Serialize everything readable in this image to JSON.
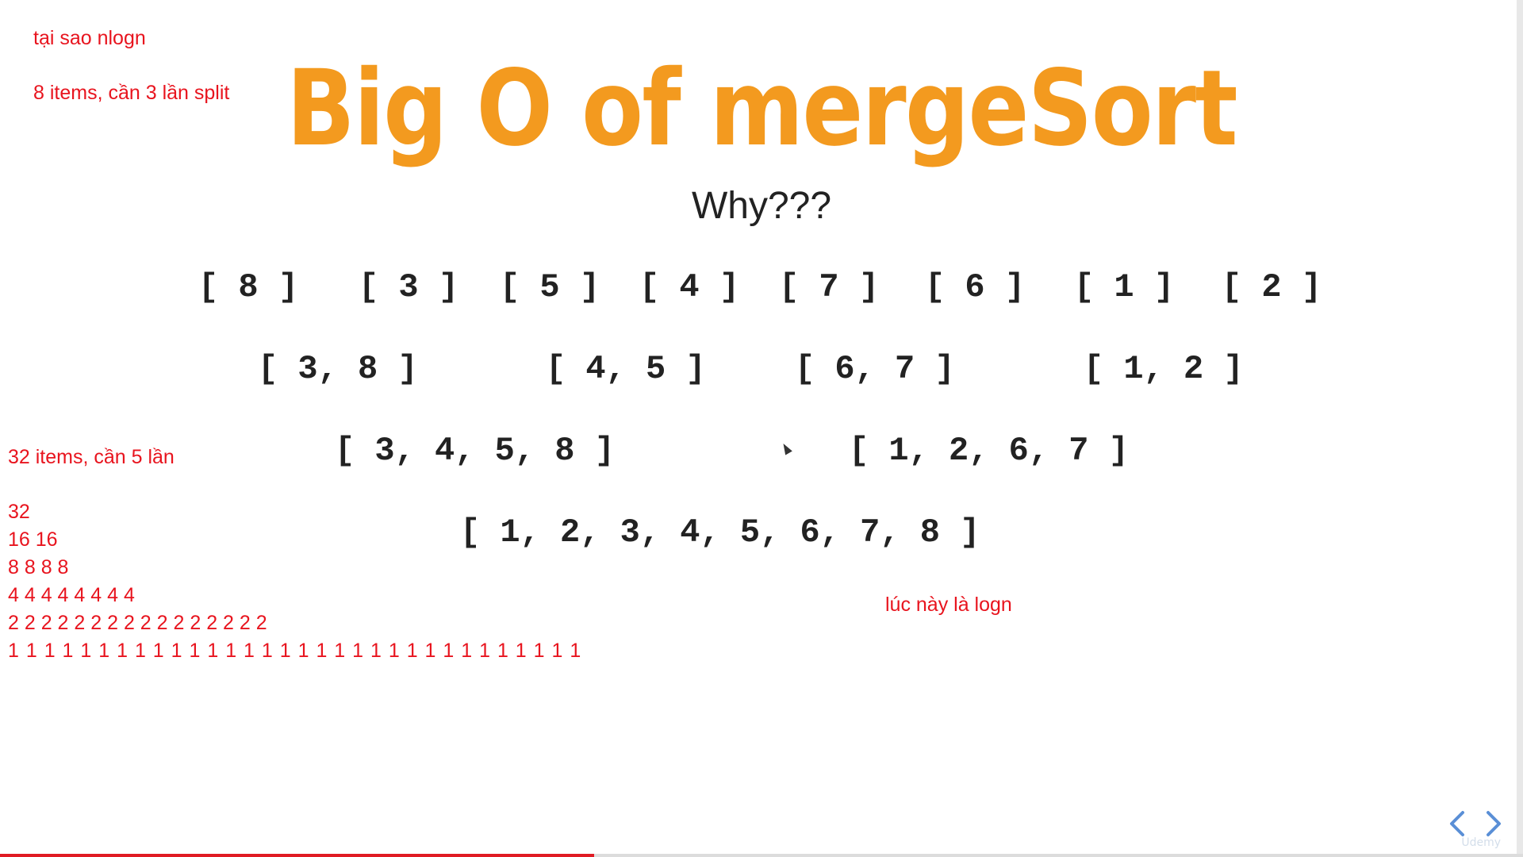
{
  "slide": {
    "title": "Big O of mergeSort",
    "subtitle": "Why???",
    "rows": [
      [
        "[ 8 ]",
        "[ 3 ]",
        "[ 5 ]",
        "[ 4 ]",
        "[ 7 ]",
        "[ 6 ]",
        "[ 1 ]",
        "[ 2 ]"
      ],
      [
        "[ 3, 8 ]",
        "[ 4, 5 ]",
        "[ 6, 7 ]",
        "[ 1, 2 ]"
      ],
      [
        "[ 3, 4, 5, 8 ]",
        "[ 1, 2, 6, 7 ]"
      ],
      [
        "[ 1, 2, 3, 4, 5, 6, 7, 8 ]"
      ]
    ]
  },
  "notes": {
    "why_nlogn": "tại sao nlogn",
    "eight_items": "8 items, cần 3 lần split",
    "thirty_two_items": "32 items, cần 5 lần",
    "split_levels": [
      "32",
      "16 16",
      "8 8 8 8",
      "4 4 4 4 4 4 4 4",
      "2 2 2 2 2 2 2 2 2 2 2 2 2 2 2 2",
      "1 1 1 1 1 1 1 1 1 1 1 1 1 1 1 1 1 1 1 1 1 1 1 1 1 1 1 1 1 1 1 1"
    ],
    "logn_note": "lúc này là logn"
  },
  "player": {
    "progress": 0.39,
    "watermark": "Udemy",
    "accent": "#e01b24"
  },
  "colors": {
    "title": "#f39a1f",
    "notes": "#e8141e",
    "text": "#222222"
  }
}
